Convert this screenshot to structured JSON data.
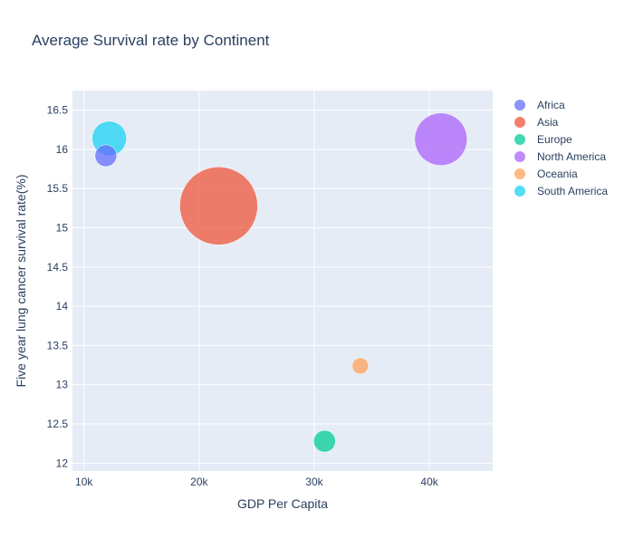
{
  "chart_data": {
    "type": "scatter",
    "title": "Average Survival rate by Continent",
    "xlabel": "GDP Per Capita",
    "ylabel": "Five year lung cancer survival rate(%)",
    "xlim": [
      9000,
      45500
    ],
    "ylim": [
      11.9,
      16.75
    ],
    "x_ticks": [
      10000,
      20000,
      30000,
      40000
    ],
    "x_tick_labels": [
      "10k",
      "20k",
      "30k",
      "40k"
    ],
    "y_ticks": [
      12,
      12.5,
      13,
      13.5,
      14,
      14.5,
      15,
      15.5,
      16,
      16.5
    ],
    "y_tick_labels": [
      "12",
      "12.5",
      "13",
      "13.5",
      "14",
      "14.5",
      "15",
      "15.5",
      "16",
      "16.5"
    ],
    "grid": true,
    "legend_position": "right",
    "series": [
      {
        "name": "Africa",
        "color": "#636efa",
        "x": [
          11900
        ],
        "y": [
          15.92
        ],
        "size": [
          12
        ]
      },
      {
        "name": "Asia",
        "color": "#ef553b",
        "x": [
          21700
        ],
        "y": [
          15.28
        ],
        "size": [
          43
        ]
      },
      {
        "name": "Europe",
        "color": "#00cc96",
        "x": [
          30900
        ],
        "y": [
          12.28
        ],
        "size": [
          12
        ]
      },
      {
        "name": "North America",
        "color": "#ab63fa",
        "x": [
          41000
        ],
        "y": [
          16.13
        ],
        "size": [
          29
        ]
      },
      {
        "name": "Oceania",
        "color": "#ffa15a",
        "x": [
          34000
        ],
        "y": [
          13.24
        ],
        "size": [
          9
        ]
      },
      {
        "name": "South America",
        "color": "#19d3f3",
        "x": [
          12200
        ],
        "y": [
          16.14
        ],
        "size": [
          19
        ]
      }
    ]
  }
}
